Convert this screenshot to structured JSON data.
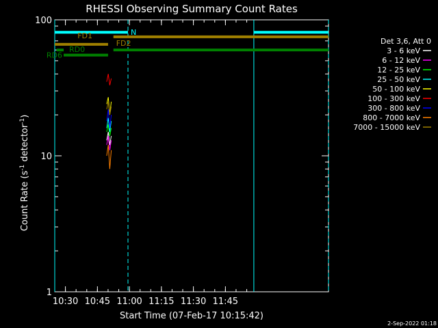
{
  "chart_data": {
    "type": "line",
    "title": "RHESSI Observing Summary Count Rates",
    "xlabel": "Start Time (07-Feb-17 10:15:42)",
    "ylabel_main": "Count Rate (s",
    "ylabel_sup1": "-1",
    "ylabel_mid": " detector",
    "ylabel_sup2": "-1",
    "ylabel_end": ")",
    "yscale": "log",
    "ylim": [
      1,
      100
    ],
    "xlim_minutes": [
      10.25,
      11.9333
    ],
    "x_ticks": [
      "10:30",
      "10:45",
      "11:00",
      "11:15",
      "11:30",
      "11:45"
    ],
    "y_ticks": [
      "1",
      "10",
      "100"
    ],
    "legend_header": "Det 3,6, Att 0",
    "legend_placement": "right",
    "series": [
      {
        "name": "3 - 6 keV",
        "color": "#ffffff",
        "x": [
          10.5,
          10.5033,
          10.5067,
          10.51
        ],
        "y": [
          13,
          15,
          12,
          14
        ]
      },
      {
        "name": "6 - 12 keV",
        "color": "#ff00ff",
        "x": [
          10.5,
          10.5033,
          10.5067,
          10.51
        ],
        "y": [
          12,
          14,
          11,
          13
        ]
      },
      {
        "name": "12 - 25 keV",
        "color": "#00ff00",
        "x": [
          10.5,
          10.5033,
          10.5067,
          10.51
        ],
        "y": [
          15,
          17,
          14,
          16
        ]
      },
      {
        "name": "25 - 50 keV",
        "color": "#00ffff",
        "x": [
          10.5,
          10.5033,
          10.5067,
          10.51
        ],
        "y": [
          16,
          19,
          15,
          18
        ]
      },
      {
        "name": "50 - 100 keV",
        "color": "#ffff00",
        "x": [
          10.5,
          10.5033,
          10.5067,
          10.51
        ],
        "y": [
          24,
          27,
          20,
          25
        ]
      },
      {
        "name": "100 - 300 keV",
        "color": "#ff0000",
        "x": [
          10.5,
          10.5033,
          10.5067,
          10.51
        ],
        "y": [
          35,
          40,
          33,
          37
        ]
      },
      {
        "name": "300 - 800 keV",
        "color": "#0000ff",
        "x": [
          10.5,
          10.5033,
          10.5067,
          10.51
        ],
        "y": [
          18,
          22,
          16,
          20
        ]
      },
      {
        "name": "800 - 7000 keV",
        "color": "#ff8000",
        "x": [
          10.5,
          10.5033,
          10.5067,
          10.51
        ],
        "y": [
          10,
          12,
          8,
          11
        ]
      },
      {
        "name": "7000 - 15000 keV",
        "color": "#a08000",
        "x": [
          10.5,
          10.5033,
          10.5067,
          10.51
        ],
        "y": [
          22,
          25,
          20,
          23
        ]
      }
    ],
    "flag_bars": [
      {
        "label": "N",
        "color": "#00ffff",
        "x_start": 10.25,
        "x_end": 10.5933,
        "y": 81
      },
      {
        "label": "",
        "color": "#00ffff",
        "x_start": 11.5833,
        "x_end": 11.9333,
        "y": 81
      },
      {
        "label": "FD1",
        "color": "#a08000",
        "x_start": 10.25,
        "x_end": 10.5,
        "y": 66
      },
      {
        "label": "FD2",
        "color": "#a08000",
        "x_start": 10.525,
        "x_end": 11.9333,
        "y": 75
      },
      {
        "label": "RD0",
        "color": "#008000",
        "x_start": 10.2583,
        "x_end": 10.2917,
        "y": 60
      },
      {
        "label": "",
        "color": "#008000",
        "x_start": 10.525,
        "x_end": 11.9333,
        "y": 60
      },
      {
        "label": "RD6",
        "color": "#008000",
        "x_start": 10.2917,
        "x_end": 10.5,
        "y": 55
      }
    ],
    "vlines_solid": [
      10.25,
      11.5833
    ],
    "vlines_dashed": [
      10.5933,
      11.9333
    ],
    "vline_color": "#00ffff"
  },
  "footer_date": "2-Sep-2022 01:18"
}
